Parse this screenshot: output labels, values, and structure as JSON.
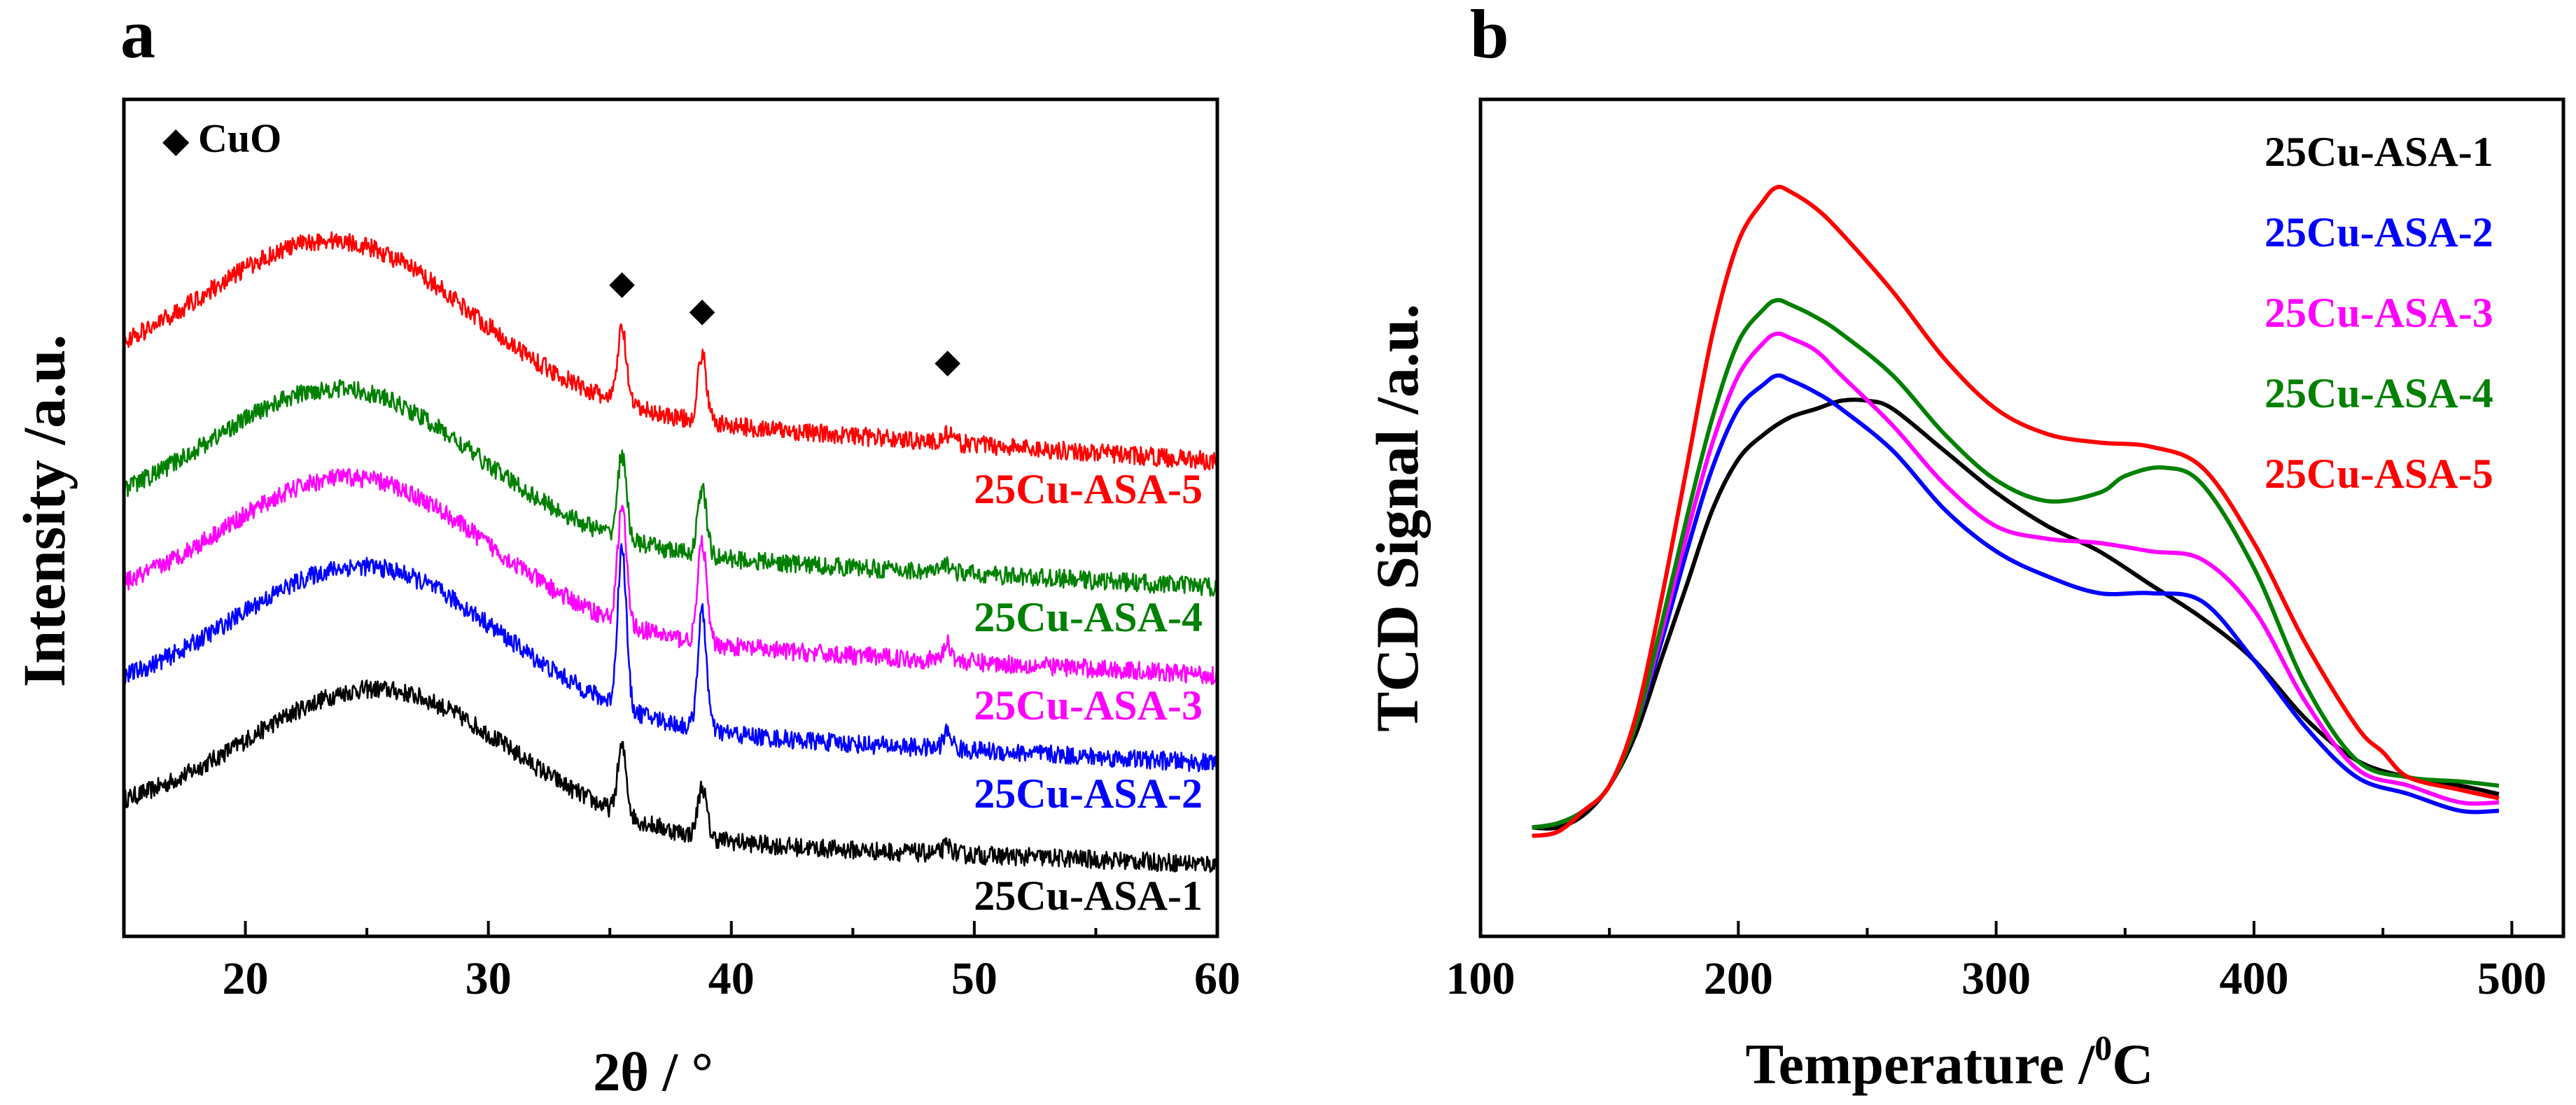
{
  "chart_data": [
    {
      "type": "line",
      "panel_label": "a",
      "title": "",
      "xlabel": "2θ / °",
      "ylabel": "Intensity /a.u.",
      "xlim": [
        15,
        60
      ],
      "xticks": [
        20,
        30,
        40,
        50,
        60
      ],
      "xtick_labels": [
        "20",
        "30",
        "40",
        "50",
        "60"
      ],
      "yticks": false,
      "grid": false,
      "legend": {
        "marker": "◆",
        "label": "CuO",
        "position": "top-left"
      },
      "cuo_peaks_2theta": [
        35.5,
        38.8,
        48.9
      ],
      "series": [
        {
          "name": "25Cu-ASA-1",
          "color": "#000000",
          "offset": 0.0,
          "halo_center": 25.5,
          "halo_height": 0.17,
          "baseline_end": -0.05,
          "peaks": [
            [
              35.5,
              0.08
            ],
            [
              38.8,
              0.06
            ],
            [
              48.9,
              0.01
            ]
          ]
        },
        {
          "name": "25Cu-ASA-2",
          "color": "#0000ff",
          "offset": 0.14,
          "halo_center": 25.0,
          "halo_height": 0.18,
          "baseline_end": -0.07,
          "peaks": [
            [
              35.5,
              0.19
            ],
            [
              38.8,
              0.14
            ],
            [
              48.9,
              0.02
            ]
          ]
        },
        {
          "name": "25Cu-ASA-3",
          "color": "#ff00ff",
          "offset": 0.245,
          "halo_center": 24.5,
          "halo_height": 0.18,
          "baseline_end": -0.07,
          "peaks": [
            [
              35.5,
              0.14
            ],
            [
              38.8,
              0.12
            ],
            [
              48.9,
              0.02
            ]
          ]
        },
        {
          "name": "25Cu-ASA-4",
          "color": "#008000",
          "offset": 0.35,
          "halo_center": 24.0,
          "halo_height": 0.18,
          "baseline_end": -0.07,
          "peaks": [
            [
              35.5,
              0.1
            ],
            [
              38.8,
              0.08
            ],
            [
              48.9,
              0.01
            ]
          ]
        },
        {
          "name": "25Cu-ASA-5",
          "color": "#ff0000",
          "offset": 0.52,
          "halo_center": 23.8,
          "halo_height": 0.19,
          "baseline_end": -0.09,
          "peaks": [
            [
              35.5,
              0.09
            ],
            [
              38.8,
              0.08
            ],
            [
              48.9,
              0.01
            ]
          ]
        }
      ]
    },
    {
      "type": "line",
      "panel_label": "b",
      "title": "",
      "xlabel": "Temperature /",
      "xlabel_sup": "0",
      "xlabel_unit": "C",
      "ylabel": "TCD Signal /a.u.",
      "xlim": [
        100,
        520
      ],
      "ylim": [
        0,
        1
      ],
      "xticks": [
        100,
        200,
        300,
        400,
        500
      ],
      "xtick_labels": [
        "100",
        "200",
        "300",
        "400",
        "500"
      ],
      "yticks": false,
      "grid": false,
      "legend_position": "top-right",
      "series": [
        {
          "name": "25Cu-ASA-1",
          "color": "#000000",
          "x": [
            120,
            130,
            140,
            150,
            160,
            170,
            180,
            190,
            200,
            210,
            220,
            230,
            240,
            250,
            260,
            280,
            300,
            320,
            340,
            360,
            380,
            400,
            420,
            440,
            460,
            480,
            495
          ],
          "y": [
            0.13,
            0.13,
            0.145,
            0.18,
            0.24,
            0.33,
            0.42,
            0.51,
            0.57,
            0.6,
            0.62,
            0.63,
            0.64,
            0.64,
            0.63,
            0.58,
            0.53,
            0.49,
            0.46,
            0.42,
            0.38,
            0.33,
            0.26,
            0.21,
            0.19,
            0.18,
            0.17
          ]
        },
        {
          "name": "25Cu-ASA-2",
          "color": "#0000ff",
          "x": [
            120,
            130,
            140,
            150,
            160,
            170,
            180,
            190,
            200,
            210,
            215,
            220,
            230,
            240,
            260,
            280,
            300,
            320,
            340,
            360,
            380,
            400,
            420,
            440,
            460,
            480,
            495
          ],
          "y": [
            0.13,
            0.135,
            0.15,
            0.18,
            0.25,
            0.35,
            0.46,
            0.56,
            0.63,
            0.66,
            0.67,
            0.665,
            0.65,
            0.63,
            0.58,
            0.51,
            0.46,
            0.43,
            0.41,
            0.41,
            0.4,
            0.33,
            0.25,
            0.19,
            0.17,
            0.15,
            0.15
          ]
        },
        {
          "name": "25Cu-ASA-3",
          "color": "#ff00ff",
          "x": [
            120,
            130,
            140,
            150,
            160,
            170,
            180,
            190,
            200,
            210,
            215,
            220,
            230,
            240,
            260,
            280,
            300,
            320,
            340,
            360,
            380,
            400,
            420,
            440,
            460,
            480,
            495
          ],
          "y": [
            0.13,
            0.135,
            0.15,
            0.18,
            0.25,
            0.36,
            0.48,
            0.59,
            0.67,
            0.71,
            0.72,
            0.715,
            0.7,
            0.67,
            0.61,
            0.54,
            0.49,
            0.475,
            0.47,
            0.46,
            0.45,
            0.39,
            0.28,
            0.2,
            0.18,
            0.16,
            0.16
          ]
        },
        {
          "name": "25Cu-ASA-4",
          "color": "#008000",
          "x": [
            120,
            130,
            140,
            150,
            160,
            170,
            180,
            190,
            200,
            210,
            215,
            220,
            230,
            240,
            260,
            280,
            300,
            320,
            340,
            350,
            365,
            380,
            400,
            420,
            440,
            460,
            480,
            495
          ],
          "y": [
            0.13,
            0.135,
            0.15,
            0.18,
            0.25,
            0.37,
            0.5,
            0.62,
            0.71,
            0.75,
            0.76,
            0.755,
            0.74,
            0.72,
            0.67,
            0.6,
            0.545,
            0.52,
            0.53,
            0.55,
            0.56,
            0.54,
            0.44,
            0.3,
            0.21,
            0.19,
            0.185,
            0.18
          ]
        },
        {
          "name": "25Cu-ASA-5",
          "color": "#ff0000",
          "x": [
            120,
            130,
            140,
            150,
            160,
            170,
            180,
            190,
            200,
            210,
            215,
            220,
            230,
            240,
            260,
            280,
            300,
            320,
            340,
            360,
            380,
            400,
            420,
            440,
            450,
            460,
            480,
            495
          ],
          "y": [
            0.12,
            0.125,
            0.15,
            0.18,
            0.26,
            0.4,
            0.56,
            0.72,
            0.83,
            0.88,
            0.895,
            0.89,
            0.87,
            0.84,
            0.77,
            0.69,
            0.63,
            0.6,
            0.59,
            0.585,
            0.56,
            0.47,
            0.35,
            0.25,
            0.22,
            0.19,
            0.175,
            0.165
          ]
        }
      ]
    }
  ]
}
